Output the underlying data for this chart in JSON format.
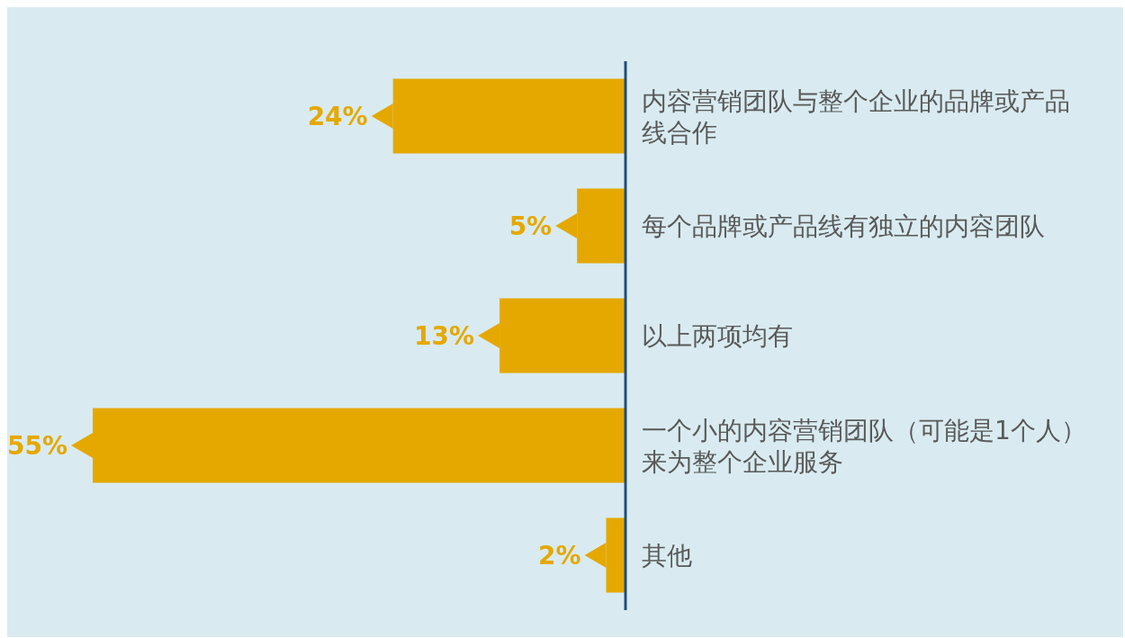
{
  "chart_data": {
    "type": "bar",
    "orientation": "horizontal",
    "categories": [
      "内容营销团队与整个企业的品牌或产品线合作",
      "每个品牌或产品线有独立的内容团队",
      "以上两项均有",
      "一个小的内容营销团队（可能是1个人）来为整个企业服务",
      "其他"
    ],
    "values": [
      24,
      5,
      13,
      55,
      2
    ],
    "color": "#e5a800",
    "value_labels": [
      "24%",
      "5%",
      "13%",
      "55%",
      "2%"
    ],
    "tick_labels": "y"
  }
}
